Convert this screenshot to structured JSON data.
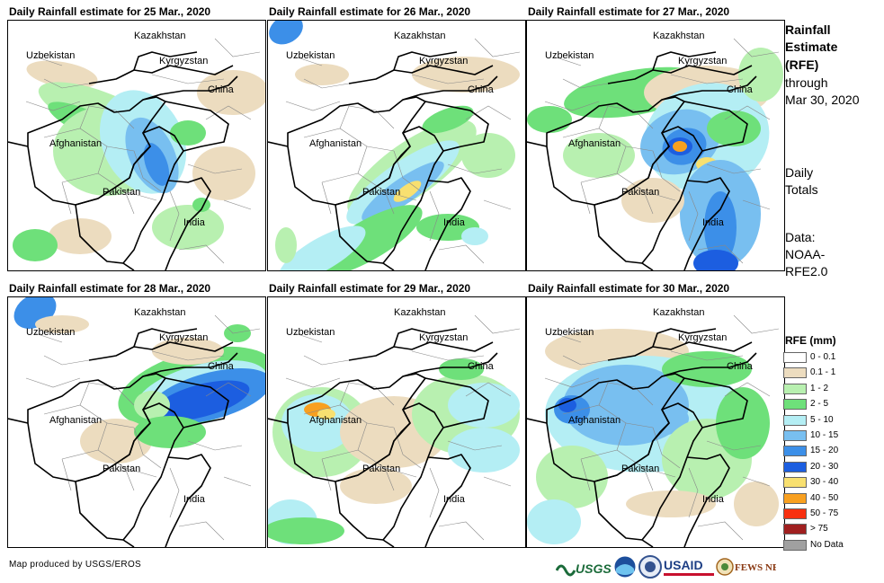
{
  "panels": [
    {
      "title": "Daily Rainfall estimate for 25 Mar., 2020",
      "dominant": "afghan-pakistan"
    },
    {
      "title": "Daily Rainfall estimate for 26 Mar., 2020",
      "dominant": "pakistan"
    },
    {
      "title": "Daily Rainfall estimate for 27 Mar., 2020",
      "dominant": "kashmir"
    },
    {
      "title": "Daily Rainfall estimate for 28 Mar., 2020",
      "dominant": "china"
    },
    {
      "title": "Daily Rainfall estimate for 29 Mar., 2020",
      "dominant": "west-afghan"
    },
    {
      "title": "Daily Rainfall estimate for 30 Mar., 2020",
      "dominant": "afghan-wide"
    }
  ],
  "map_labels": {
    "kazakhstan": "Kazakhstan",
    "uzbekistan": "Uzbekistan",
    "kyrgyzstan": "Kyrgyzstan",
    "china": "China",
    "afghanistan": "Afghanistan",
    "pakistan": "Pakistan",
    "india": "India"
  },
  "sidebar": {
    "title_line1": "Rainfall",
    "title_line2": "Estimate",
    "title_line3": "(RFE)",
    "through": "through",
    "date": "Mar 30, 2020",
    "daily": "Daily",
    "totals": "Totals",
    "data_label": "Data:",
    "data_src1": "NOAA-",
    "data_src2": "RFE2.0"
  },
  "legend": {
    "title": "RFE (mm)",
    "items": [
      {
        "label": "0 - 0.1",
        "color": "#ffffff"
      },
      {
        "label": "0.1 - 1",
        "color": "#ecdcbf"
      },
      {
        "label": "1 - 2",
        "color": "#b8f0b0"
      },
      {
        "label": "2 - 5",
        "color": "#6ee07a"
      },
      {
        "label": "5 - 10",
        "color": "#b4eef4"
      },
      {
        "label": "10 - 15",
        "color": "#78bff0"
      },
      {
        "label": "15 - 20",
        "color": "#3c8fe8"
      },
      {
        "label": "20 - 30",
        "color": "#1c5ee0"
      },
      {
        "label": "30 - 40",
        "color": "#f8e070"
      },
      {
        "label": "40 - 50",
        "color": "#f8a020"
      },
      {
        "label": "50 - 75",
        "color": "#f83010"
      },
      {
        "label": "> 75",
        "color": "#a02020"
      },
      {
        "label": "No Data",
        "color": "#a0a0a0"
      }
    ]
  },
  "footer": {
    "credit": "Map produced by USGS/EROS",
    "usgs": "USGS",
    "usaid": "USAID",
    "fewsnet": "FEWS NET"
  }
}
